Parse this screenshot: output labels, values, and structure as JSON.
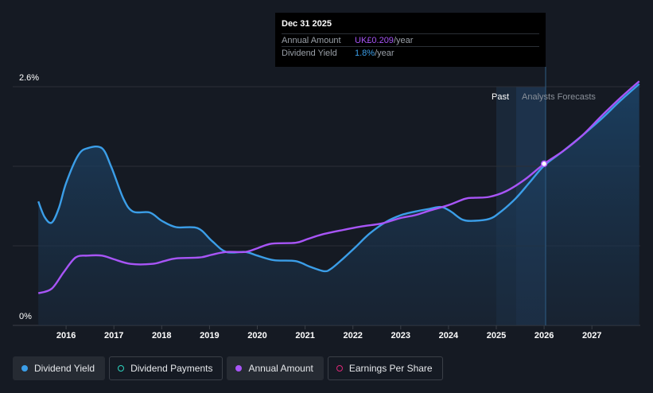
{
  "chart_data": {
    "type": "line",
    "x_ticks": [
      "2016",
      "2017",
      "2018",
      "2019",
      "2020",
      "2021",
      "2022",
      "2023",
      "2024",
      "2025",
      "2026",
      "2027"
    ],
    "y_ticks": [
      "0%",
      "2.6%"
    ],
    "ylim": [
      0,
      2.6
    ],
    "past_label": "Past",
    "forecast_label": "Analysts Forecasts",
    "series": [
      {
        "name": "Dividend Yield",
        "color": "#3b9ee8",
        "points": [
          [
            2015.42,
            1.35
          ],
          [
            2015.55,
            1.18
          ],
          [
            2015.7,
            1.12
          ],
          [
            2015.85,
            1.28
          ],
          [
            2016.0,
            1.55
          ],
          [
            2016.25,
            1.85
          ],
          [
            2016.45,
            1.93
          ],
          [
            2016.75,
            1.93
          ],
          [
            2016.95,
            1.72
          ],
          [
            2017.2,
            1.38
          ],
          [
            2017.4,
            1.24
          ],
          [
            2017.75,
            1.23
          ],
          [
            2018.0,
            1.14
          ],
          [
            2018.3,
            1.07
          ],
          [
            2018.75,
            1.06
          ],
          [
            2019.05,
            0.92
          ],
          [
            2019.35,
            0.8
          ],
          [
            2019.75,
            0.8
          ],
          [
            2020.0,
            0.76
          ],
          [
            2020.35,
            0.71
          ],
          [
            2020.8,
            0.7
          ],
          [
            2021.1,
            0.64
          ],
          [
            2021.4,
            0.59
          ],
          [
            2021.55,
            0.62
          ],
          [
            2021.8,
            0.73
          ],
          [
            2022.05,
            0.85
          ],
          [
            2022.35,
            1.0
          ],
          [
            2022.7,
            1.13
          ],
          [
            2023.0,
            1.2
          ],
          [
            2023.3,
            1.24
          ],
          [
            2023.6,
            1.27
          ],
          [
            2023.85,
            1.29
          ],
          [
            2024.05,
            1.24
          ],
          [
            2024.3,
            1.15
          ],
          [
            2024.55,
            1.14
          ],
          [
            2024.85,
            1.16
          ],
          [
            2025.05,
            1.22
          ],
          [
            2025.4,
            1.38
          ],
          [
            2025.7,
            1.56
          ],
          [
            2026.0,
            1.74
          ],
          [
            2026.4,
            1.9
          ],
          [
            2026.8,
            2.07
          ],
          [
            2027.2,
            2.25
          ],
          [
            2027.6,
            2.45
          ],
          [
            2027.99,
            2.63
          ]
        ]
      },
      {
        "name": "Annual Amount",
        "color": "#a855f7",
        "points": [
          [
            2015.42,
            0.35
          ],
          [
            2015.7,
            0.4
          ],
          [
            2015.95,
            0.58
          ],
          [
            2016.2,
            0.74
          ],
          [
            2016.45,
            0.76
          ],
          [
            2016.75,
            0.76
          ],
          [
            2017.0,
            0.72
          ],
          [
            2017.35,
            0.67
          ],
          [
            2017.8,
            0.67
          ],
          [
            2018.05,
            0.7
          ],
          [
            2018.3,
            0.73
          ],
          [
            2018.8,
            0.74
          ],
          [
            2019.05,
            0.77
          ],
          [
            2019.35,
            0.8
          ],
          [
            2019.75,
            0.8
          ],
          [
            2020.0,
            0.84
          ],
          [
            2020.3,
            0.89
          ],
          [
            2020.8,
            0.9
          ],
          [
            2021.05,
            0.94
          ],
          [
            2021.35,
            0.99
          ],
          [
            2021.8,
            1.04
          ],
          [
            2022.2,
            1.08
          ],
          [
            2022.6,
            1.11
          ],
          [
            2023.0,
            1.17
          ],
          [
            2023.3,
            1.2
          ],
          [
            2023.6,
            1.25
          ],
          [
            2024.0,
            1.31
          ],
          [
            2024.35,
            1.38
          ],
          [
            2024.55,
            1.39
          ],
          [
            2024.85,
            1.4
          ],
          [
            2025.2,
            1.46
          ],
          [
            2025.6,
            1.59
          ],
          [
            2026.0,
            1.76
          ],
          [
            2026.4,
            1.9
          ],
          [
            2026.8,
            2.07
          ],
          [
            2027.2,
            2.28
          ],
          [
            2027.6,
            2.48
          ],
          [
            2027.99,
            2.66
          ]
        ]
      }
    ],
    "tooltip_marker_x": 2026.0,
    "tooltip_marker_y": 1.76
  },
  "tooltip": {
    "date": "Dec 31 2025",
    "rows": [
      {
        "label": "Annual Amount",
        "value": "UK£0.209",
        "unit": "/year"
      },
      {
        "label": "Dividend Yield",
        "value": "1.8%",
        "unit": "/year"
      }
    ]
  },
  "legend": [
    {
      "label": "Dividend Yield",
      "color": "#3b9ee8",
      "style": "filled",
      "active": true
    },
    {
      "label": "Dividend Payments",
      "color": "#2dd4bf",
      "style": "hollow",
      "active": false
    },
    {
      "label": "Annual Amount",
      "color": "#a855f7",
      "style": "filled",
      "active": true
    },
    {
      "label": "Earnings Per Share",
      "color": "#db2777",
      "style": "hollow",
      "active": false
    }
  ]
}
